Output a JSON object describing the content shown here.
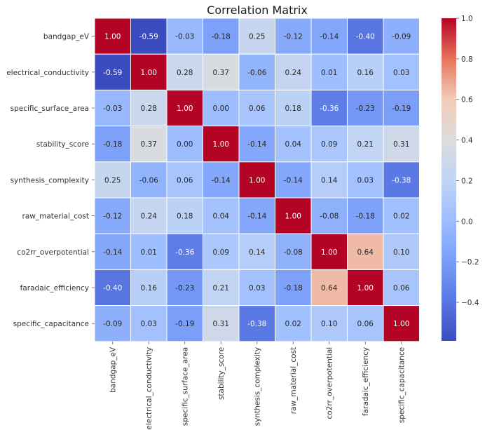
{
  "chart_data": {
    "type": "heatmap",
    "title": "Correlation Matrix",
    "xlabel": "",
    "ylabel": "",
    "colormap": "coolwarm",
    "grid": false,
    "legend": "colorbar-right",
    "labels": [
      "bandgap_eV",
      "electrical_conductivity",
      "specific_surface_area",
      "stability_score",
      "synthesis_complexity",
      "raw_material_cost",
      "co2rr_overpotential",
      "faradaic_efficiency",
      "specific_capacitance"
    ],
    "matrix": [
      [
        1.0,
        -0.59,
        -0.03,
        -0.18,
        0.25,
        -0.12,
        -0.14,
        -0.4,
        -0.09
      ],
      [
        -0.59,
        1.0,
        0.28,
        0.37,
        -0.06,
        0.24,
        0.01,
        0.16,
        0.03
      ],
      [
        -0.03,
        0.28,
        1.0,
        0.0,
        0.06,
        0.18,
        -0.36,
        -0.23,
        -0.19
      ],
      [
        -0.18,
        0.37,
        0.0,
        1.0,
        -0.14,
        0.04,
        0.09,
        0.21,
        0.31
      ],
      [
        0.25,
        -0.06,
        0.06,
        -0.14,
        1.0,
        -0.14,
        0.14,
        0.03,
        -0.38
      ],
      [
        -0.12,
        0.24,
        0.18,
        0.04,
        -0.14,
        1.0,
        -0.08,
        -0.18,
        0.02
      ],
      [
        -0.14,
        0.01,
        -0.36,
        0.09,
        0.14,
        -0.08,
        1.0,
        0.64,
        0.1
      ],
      [
        -0.4,
        0.16,
        -0.23,
        0.21,
        0.03,
        -0.18,
        0.64,
        1.0,
        0.06
      ],
      [
        -0.09,
        0.03,
        -0.19,
        0.31,
        -0.38,
        0.02,
        0.1,
        0.06,
        1.0
      ]
    ],
    "colorbar": {
      "vmin": -0.59,
      "vmax": 1.0,
      "ticks": [
        1.0,
        0.8,
        0.6,
        0.4,
        0.2,
        0.0,
        -0.2,
        -0.4
      ],
      "tick_labels": [
        "1.0",
        "0.8",
        "0.6",
        "0.4",
        "0.2",
        "0.0",
        "−0.2",
        "−0.4"
      ]
    },
    "colors": {
      "low": "#3b4cc0",
      "mid": "#dddddd",
      "high": "#b40426"
    }
  }
}
